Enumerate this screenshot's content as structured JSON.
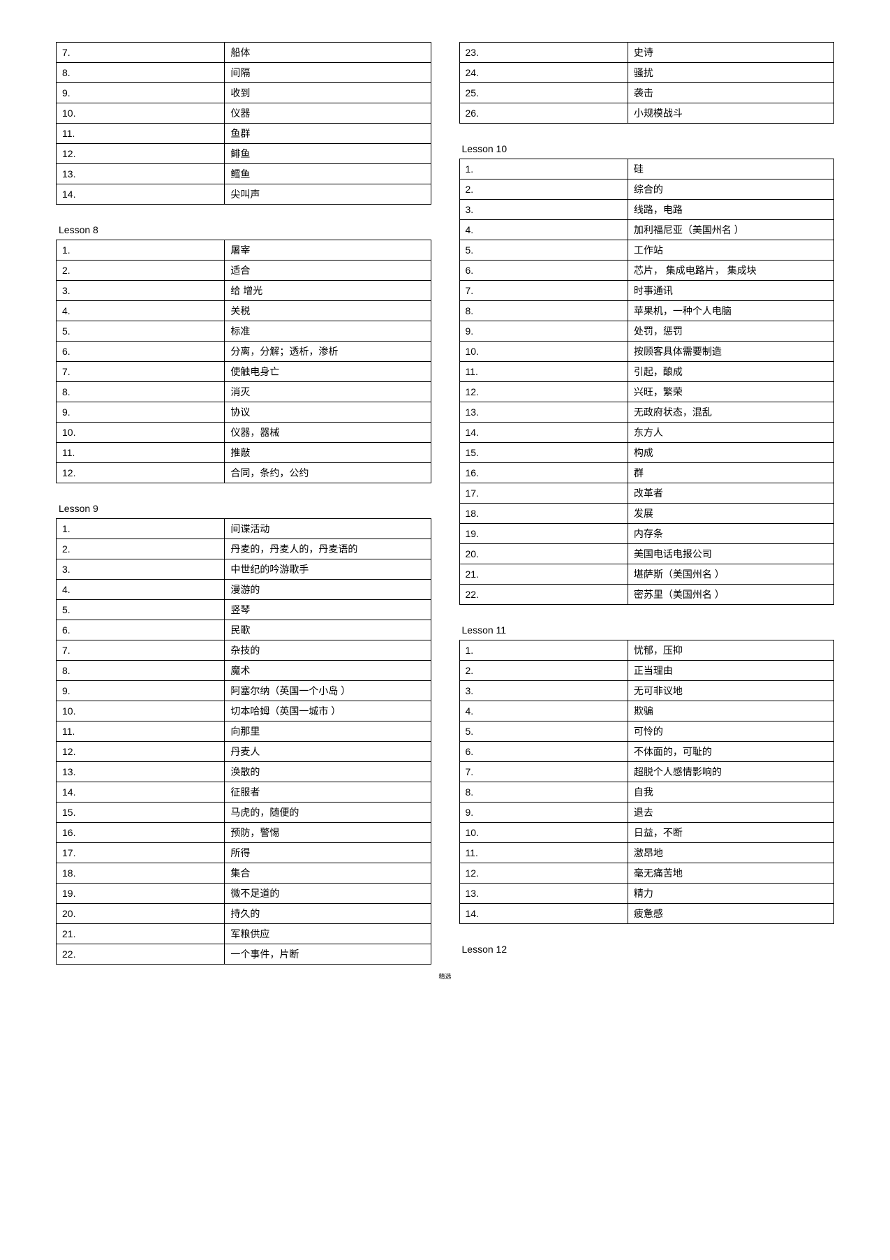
{
  "leftColumn": [
    {
      "title": null,
      "rows": [
        {
          "n": "7.",
          "d": "船体"
        },
        {
          "n": "8.",
          "d": "间隔"
        },
        {
          "n": "9.",
          "d": "收到"
        },
        {
          "n": "10.",
          "d": "仪器"
        },
        {
          "n": "11.",
          "d": "鱼群"
        },
        {
          "n": "12.",
          "d": "鲱鱼"
        },
        {
          "n": "13.",
          "d": "鳕鱼"
        },
        {
          "n": "14.",
          "d": "尖叫声"
        }
      ]
    },
    {
      "title": "Lesson 8",
      "rows": [
        {
          "n": "1.",
          "d": "屠宰"
        },
        {
          "n": "2.",
          "d": "适合"
        },
        {
          "n": "3.",
          "d": "给   增光"
        },
        {
          "n": "4.",
          "d": "关税"
        },
        {
          "n": "5.",
          "d": "标准"
        },
        {
          "n": "6.",
          "d": "分离，分解；透析，渗析"
        },
        {
          "n": "7.",
          "d": "使触电身亡"
        },
        {
          "n": "8.",
          "d": "消灭"
        },
        {
          "n": "9.",
          "d": "协议"
        },
        {
          "n": "10.",
          "d": "仪器，器械"
        },
        {
          "n": "11.",
          "d": "推敲"
        },
        {
          "n": "12.",
          "d": "合同，条约，公约"
        }
      ]
    },
    {
      "title": "Lesson 9",
      "rows": [
        {
          "n": "1.",
          "d": "间谍活动"
        },
        {
          "n": "2.",
          "d": "丹麦的，丹麦人的，丹麦语的"
        },
        {
          "n": "3.",
          "d": "中世纪的吟游歌手"
        },
        {
          "n": "4.",
          "d": "漫游的"
        },
        {
          "n": "5.",
          "d": "竖琴"
        },
        {
          "n": "6.",
          "d": "民歌"
        },
        {
          "n": "7.",
          "d": "杂技的"
        },
        {
          "n": "8.",
          "d": "魔术"
        },
        {
          "n": "9.",
          "d": "阿塞尔纳（英国一个小岛  ）"
        },
        {
          "n": "10.",
          "d": "切本哈姆（英国一城市  ）"
        },
        {
          "n": "11.",
          "d": "向那里"
        },
        {
          "n": "12.",
          "d": "丹麦人"
        },
        {
          "n": "13.",
          "d": "涣散的"
        },
        {
          "n": "14.",
          "d": "征服者"
        },
        {
          "n": "15.",
          "d": "马虎的，随便的"
        },
        {
          "n": "16.",
          "d": "预防，警惕"
        },
        {
          "n": "17.",
          "d": "所得"
        },
        {
          "n": "18.",
          "d": "集合"
        },
        {
          "n": "19.",
          "d": "微不足道的"
        },
        {
          "n": "20.",
          "d": "持久的"
        },
        {
          "n": "21.",
          "d": "军粮供应"
        },
        {
          "n": "22.",
          "d": "一个事件，片断"
        }
      ]
    }
  ],
  "rightColumn": [
    {
      "title": null,
      "rows": [
        {
          "n": "23.",
          "d": "史诗"
        },
        {
          "n": "24.",
          "d": "骚扰"
        },
        {
          "n": "25.",
          "d": "袭击"
        },
        {
          "n": "26.",
          "d": "小规模战斗"
        }
      ]
    },
    {
      "title": "Lesson 10",
      "rows": [
        {
          "n": "1.",
          "d": "硅"
        },
        {
          "n": "2.",
          "d": "综合的"
        },
        {
          "n": "3.",
          "d": "线路，电路"
        },
        {
          "n": "4.",
          "d": "加利福尼亚（美国州名  ）"
        },
        {
          "n": "5.",
          "d": "工作站"
        },
        {
          "n": "6.",
          "d": "芯片，  集成电路片，  集成块"
        },
        {
          "n": "7.",
          "d": "时事通讯"
        },
        {
          "n": "8.",
          "d": "苹果机，一种个人电脑"
        },
        {
          "n": "9.",
          "d": "处罚，惩罚"
        },
        {
          "n": "10.",
          "d": "按顾客具体需要制造"
        },
        {
          "n": "11.",
          "d": "引起，酿成"
        },
        {
          "n": "12.",
          "d": "兴旺，繁荣"
        },
        {
          "n": "13.",
          "d": "无政府状态，混乱"
        },
        {
          "n": "14.",
          "d": "东方人"
        },
        {
          "n": "15.",
          "d": "构成"
        },
        {
          "n": "16.",
          "d": "群"
        },
        {
          "n": "17.",
          "d": "改革者"
        },
        {
          "n": "18.",
          "d": "发展"
        },
        {
          "n": "19.",
          "d": "内存条"
        },
        {
          "n": "20.",
          "d": "美国电话电报公司"
        },
        {
          "n": "21.",
          "d": "堪萨斯（美国州名  ）"
        },
        {
          "n": "22.",
          "d": "密苏里（美国州名  ）"
        }
      ]
    },
    {
      "title": "Lesson 11",
      "rows": [
        {
          "n": "1.",
          "d": "忧郁，压抑"
        },
        {
          "n": "2.",
          "d": "正当理由"
        },
        {
          "n": "3.",
          "d": "无可非议地"
        },
        {
          "n": "4.",
          "d": "欺骗"
        },
        {
          "n": "5.",
          "d": "可怜的"
        },
        {
          "n": "6.",
          "d": "不体面的，可耻的"
        },
        {
          "n": "7.",
          "d": "超脱个人感情影响的"
        },
        {
          "n": "8.",
          "d": "自我"
        },
        {
          "n": "9.",
          "d": "退去"
        },
        {
          "n": "10.",
          "d": "日益，不断"
        },
        {
          "n": "11.",
          "d": "激昂地"
        },
        {
          "n": "12.",
          "d": "毫无痛苦地"
        },
        {
          "n": "13.",
          "d": "精力"
        },
        {
          "n": "14.",
          "d": "疲惫感"
        }
      ]
    },
    {
      "title": "Lesson 12",
      "rows": []
    }
  ],
  "footer": "精选"
}
